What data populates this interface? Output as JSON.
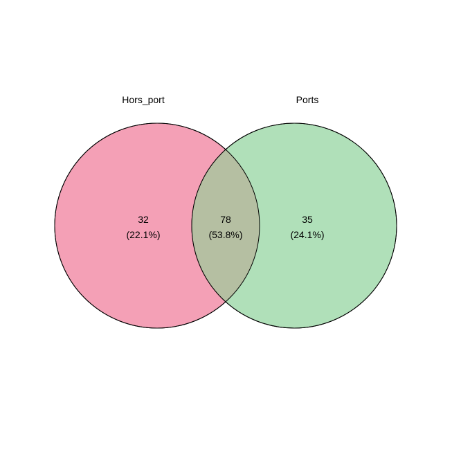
{
  "diagram": {
    "sets": [
      {
        "name": "Hors_port",
        "fill": "#f4a0b6",
        "stroke": "#000000"
      },
      {
        "name": "Ports",
        "fill": "#b0e0b9",
        "stroke": "#000000"
      }
    ],
    "overlap_fill": "#b5bfa2",
    "regions": {
      "left_only": {
        "count": "32",
        "percent": "(22.1%)"
      },
      "both": {
        "count": "78",
        "percent": "(53.8%)"
      },
      "right_only": {
        "count": "35",
        "percent": "(24.1%)"
      }
    }
  }
}
